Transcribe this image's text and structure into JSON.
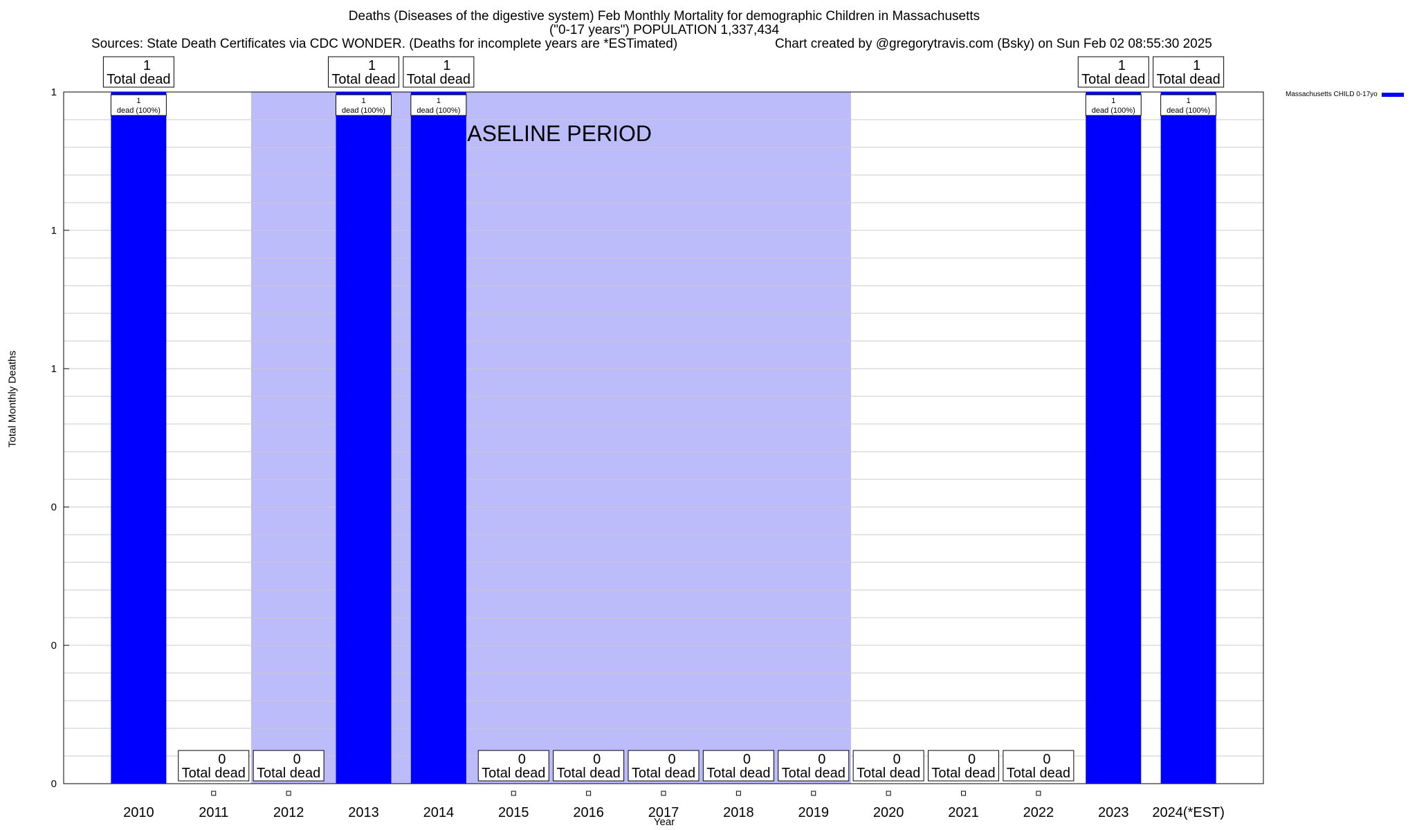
{
  "title": {
    "line1": "Deaths (Diseases of the digestive system) Feb Monthly Mortality for demographic Children in Massachusetts",
    "line2": "(\"0-17 years\") POPULATION 1,337,434",
    "sources": "Sources: State Death Certificates via CDC WONDER. (Deaths for incomplete years are *ESTimated)",
    "credit": "Chart created by @gregorytravis.com (Bsky) on Sun Feb 02 08:55:30 2025"
  },
  "legend": {
    "label": "Massachusetts CHILD 0-17yo",
    "color": "#0000ff"
  },
  "baseline_label": "BASELINE PERIOD",
  "chart_data": {
    "type": "bar",
    "categories": [
      "2010",
      "2011",
      "2012",
      "2013",
      "2014",
      "2015",
      "2016",
      "2017",
      "2018",
      "2019",
      "2020",
      "2021",
      "2022",
      "2023",
      "2024(*EST)"
    ],
    "series": [
      {
        "name": "Massachusetts CHILD 0-17yo",
        "values": [
          1,
          0,
          0,
          1,
          1,
          0,
          0,
          0,
          0,
          0,
          0,
          0,
          0,
          1,
          1
        ],
        "color": "#0000ff"
      }
    ],
    "ylim": [
      0,
      1
    ],
    "yticks": [
      "0",
      "0",
      "0",
      "1",
      "1",
      "1"
    ],
    "xlabel": "Year",
    "ylabel": "Total Monthly Deaths",
    "baseline_range": [
      "2012",
      "2019"
    ],
    "baseline_color": "#bcbcfb",
    "total_label": "Total dead",
    "inner_label": "dead (100%)",
    "grid": true
  }
}
